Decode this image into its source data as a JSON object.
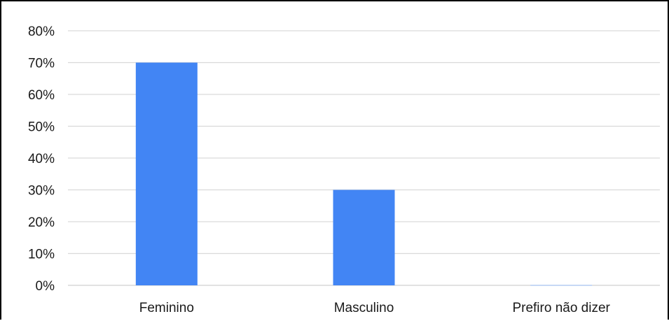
{
  "chart_data": {
    "type": "bar",
    "categories": [
      "Feminino",
      "Masculino",
      "Prefiro não dizer"
    ],
    "values": [
      70,
      30,
      0
    ],
    "y_tick_labels": [
      "0%",
      "10%",
      "20%",
      "30%",
      "40%",
      "50%",
      "60%",
      "70%",
      "80%"
    ],
    "ylim": [
      0,
      80
    ],
    "y_unit": "%",
    "grid": true,
    "legend": false,
    "bar_color": "#4285f4",
    "grid_color": "#d9d9d9"
  }
}
